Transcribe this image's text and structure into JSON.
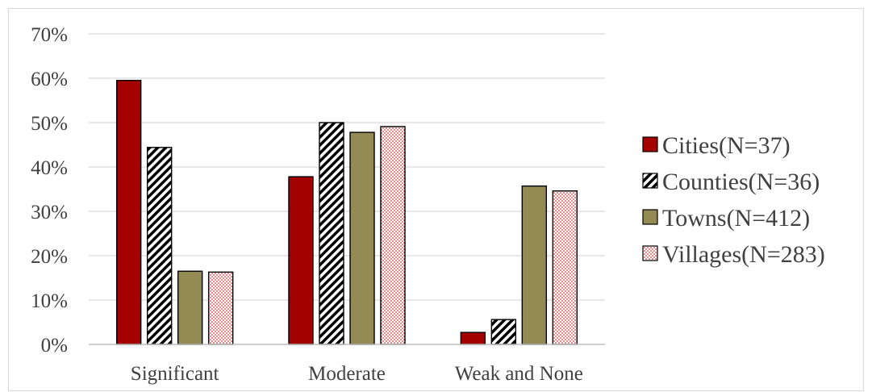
{
  "chart_data": {
    "type": "bar",
    "categories": [
      "Significant",
      "Moderate",
      "Weak and None"
    ],
    "series": [
      {
        "name": "Cities(N=37)",
        "values": [
          59.5,
          37.8,
          2.7
        ],
        "pattern": "solid",
        "color": "#a50000"
      },
      {
        "name": "Counties(N=36)",
        "values": [
          44.4,
          50.0,
          5.6
        ],
        "pattern": "diagonal-stripes",
        "color": "#000000"
      },
      {
        "name": "Towns(N=412)",
        "values": [
          16.5,
          47.8,
          35.7
        ],
        "pattern": "solid",
        "color": "#948a54"
      },
      {
        "name": "Villages(N=283)",
        "values": [
          16.3,
          49.1,
          34.6
        ],
        "pattern": "red-dots",
        "color": "#c00000"
      }
    ],
    "yticks": [
      "0%",
      "10%",
      "20%",
      "30%",
      "40%",
      "50%",
      "60%",
      "70%"
    ],
    "ylim": [
      0,
      70
    ],
    "title": "",
    "xlabel": "",
    "ylabel": "",
    "grid": true,
    "legend_position": "right"
  }
}
